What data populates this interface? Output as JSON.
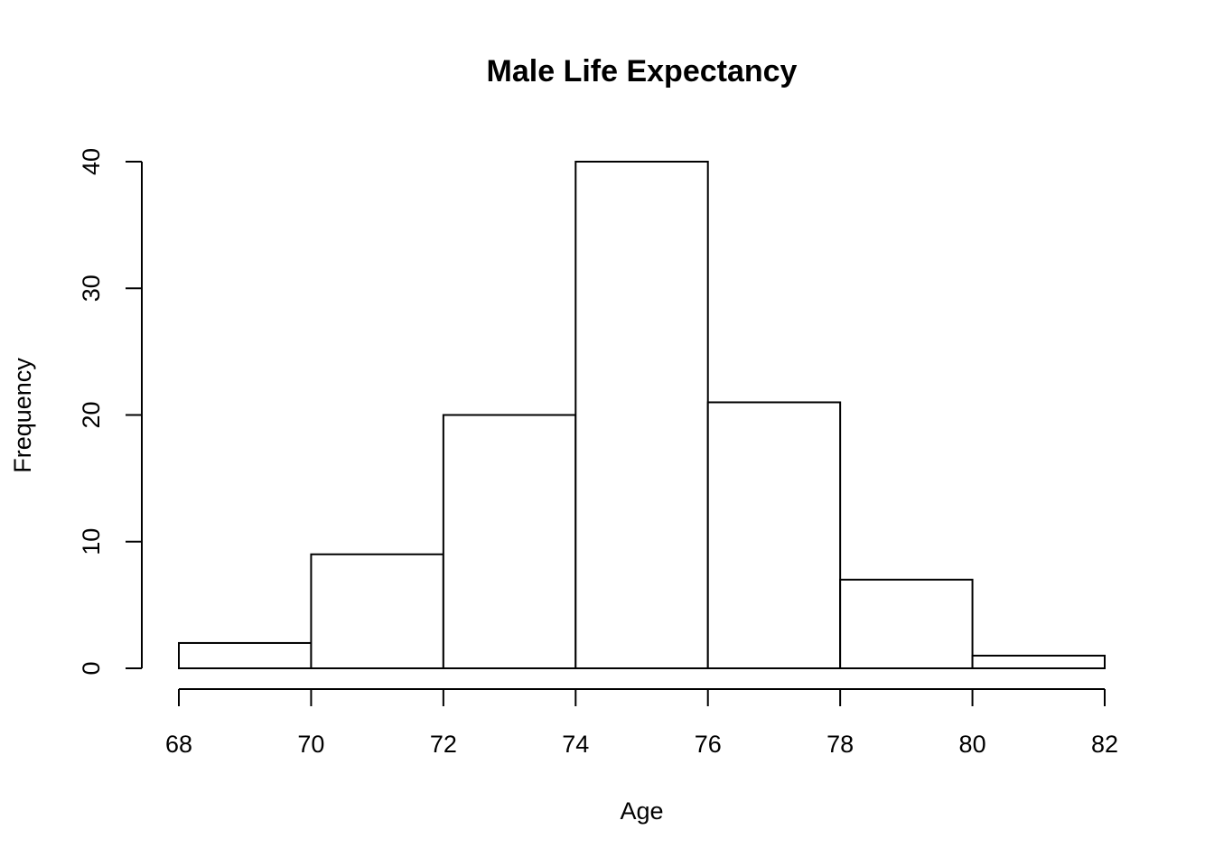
{
  "chart_data": {
    "type": "bar",
    "chart_kind": "histogram",
    "title": "Male Life Expectancy",
    "xlabel": "Age",
    "ylabel": "Frequency",
    "bin_edges": [
      68,
      70,
      72,
      74,
      76,
      78,
      80,
      82
    ],
    "counts": [
      2,
      9,
      20,
      40,
      21,
      7,
      1
    ],
    "x_ticks": [
      68,
      70,
      72,
      74,
      76,
      78,
      80,
      82
    ],
    "y_ticks": [
      0,
      10,
      20,
      30,
      40
    ],
    "xlim": [
      68,
      82
    ],
    "ylim": [
      0,
      40
    ],
    "grid": false,
    "legend": "none",
    "bar_fill": "#ffffff",
    "bar_stroke": "#000000",
    "axis_color": "#000000",
    "text_color": "#000000",
    "background": "#ffffff"
  }
}
